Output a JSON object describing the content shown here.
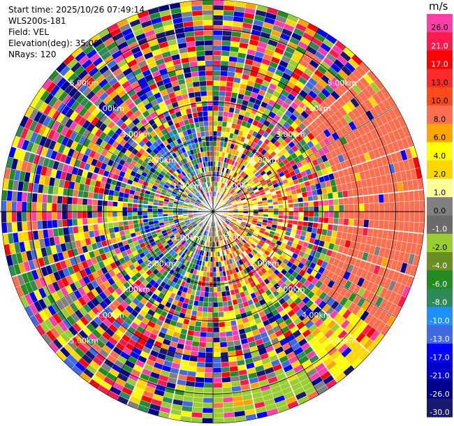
{
  "header": {
    "start_time": "Start time: 2025/10/26 07:49:14",
    "station": "WLS200s-181",
    "field": "Field: VEL",
    "elevation": "Elevation(deg): 35.00",
    "nrays": "NRays: 120"
  },
  "colorbar": {
    "unit": "m/s",
    "levels": [
      {
        "label": "26.0",
        "color": "#ff3fa8"
      },
      {
        "label": "21.0",
        "color": "#ff1a4e"
      },
      {
        "label": "17.0",
        "color": "#ff0000"
      },
      {
        "label": "13.0",
        "color": "#ff2b2b"
      },
      {
        "label": "10.0",
        "color": "#ff4a1a"
      },
      {
        "label": "8.0",
        "color": "#ff6f4f"
      },
      {
        "label": "6.0",
        "color": "#ffa500"
      },
      {
        "label": "4.0",
        "color": "#ffff00"
      },
      {
        "label": "2.0",
        "color": "#ffd700"
      },
      {
        "label": "1.0",
        "color": "#ffff99"
      },
      {
        "label": "0.0",
        "color": "#808080"
      },
      {
        "label": "-1.0",
        "color": "#6b6b6b"
      },
      {
        "label": "-2.0",
        "color": "#9acd32"
      },
      {
        "label": "-4.0",
        "color": "#6b8e23"
      },
      {
        "label": "-6.0",
        "color": "#228b22"
      },
      {
        "label": "-8.0",
        "color": "#2e8b57"
      },
      {
        "label": "-10.0",
        "color": "#1e90ff"
      },
      {
        "label": "-13.0",
        "color": "#4169e1"
      },
      {
        "label": "-17.0",
        "color": "#0000ff"
      },
      {
        "label": "-21.0",
        "color": "#0000cd"
      },
      {
        "label": "-26.0",
        "color": "#00008b"
      },
      {
        "label": "-30.0",
        "color": "#191970"
      }
    ]
  },
  "chart_data": {
    "type": "heatmap",
    "subtype": "ppi-polar",
    "field": "VEL",
    "n_rays": 120,
    "rings_km": [
      1.0,
      2.0,
      3.0,
      4.0,
      5.0
    ],
    "ring_labels": [
      "1.00km",
      "2.00km",
      "3.00km",
      "4.00km",
      "5.00km"
    ],
    "max_range_km": 5.8,
    "grid": true,
    "colorbar_placement": "right",
    "notes": "Inner zone east: positive (yellow/orange/red); inner zone west: negative (blue/green); outer gates mostly noisy random values; east/southeast outer arc shows coherent salmon and yellow bands."
  }
}
